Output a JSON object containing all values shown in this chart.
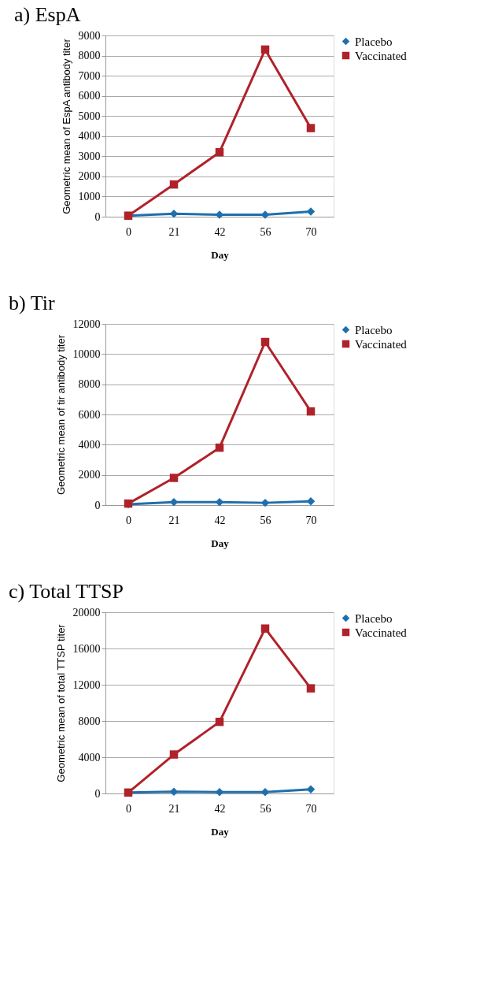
{
  "chart_data": [
    {
      "type": "line",
      "title": "a) EspA",
      "xlabel": "Day",
      "ylabel": "Geometric mean of EspA antibody titer",
      "categories": [
        "0",
        "21",
        "42",
        "56",
        "70"
      ],
      "ylim": [
        0,
        9000
      ],
      "yticks": [
        0,
        1000,
        2000,
        3000,
        4000,
        5000,
        6000,
        7000,
        8000,
        9000
      ],
      "grid": "y",
      "legend": "right",
      "series": [
        {
          "name": "Placebo",
          "color": "#1f6fad",
          "marker": "diamond",
          "values": [
            50,
            150,
            100,
            100,
            250
          ]
        },
        {
          "name": "Vaccinated",
          "color": "#b0222a",
          "marker": "square",
          "values": [
            50,
            1600,
            3200,
            8300,
            4400
          ]
        }
      ]
    },
    {
      "type": "line",
      "title": "b) Tir",
      "xlabel": "Day",
      "ylabel": "Geometric mean of tir antibody titer",
      "categories": [
        "0",
        "21",
        "42",
        "56",
        "70"
      ],
      "ylim": [
        0,
        12000
      ],
      "yticks": [
        0,
        2000,
        4000,
        6000,
        8000,
        10000,
        12000
      ],
      "grid": "y",
      "legend": "right",
      "series": [
        {
          "name": "Placebo",
          "color": "#1f6fad",
          "marker": "diamond",
          "values": [
            50,
            200,
            200,
            150,
            250
          ]
        },
        {
          "name": "Vaccinated",
          "color": "#b0222a",
          "marker": "square",
          "values": [
            100,
            1800,
            3800,
            10800,
            6200
          ]
        }
      ]
    },
    {
      "type": "line",
      "title": "c) Total TTSP",
      "xlabel": "Day",
      "ylabel": "Geometric mean of total TTSP titer",
      "categories": [
        "0",
        "21",
        "42",
        "56",
        "70"
      ],
      "ylim": [
        0,
        20000
      ],
      "yticks": [
        0,
        4000,
        8000,
        12000,
        16000,
        20000
      ],
      "grid": "y",
      "legend": "right",
      "series": [
        {
          "name": "Placebo",
          "color": "#1f6fad",
          "marker": "diamond",
          "values": [
            100,
            200,
            150,
            150,
            450
          ]
        },
        {
          "name": "Vaccinated",
          "color": "#b0222a",
          "marker": "square",
          "values": [
            100,
            4300,
            7900,
            18200,
            11600
          ]
        }
      ]
    }
  ]
}
